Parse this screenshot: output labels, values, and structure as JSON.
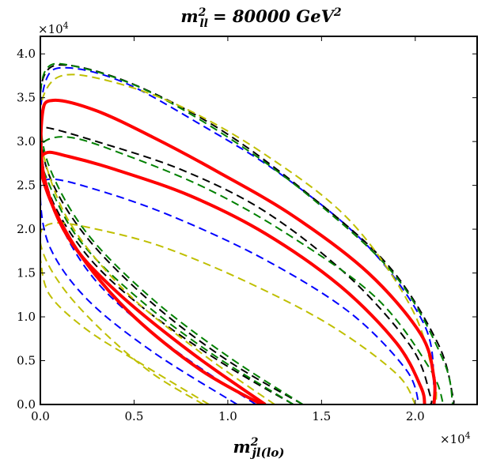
{
  "chart_data": {
    "type": "line",
    "title": "m_ll^2 = 80000 GeV^2",
    "title_parts": {
      "lhs_base": "m",
      "lhs_sup": "2",
      "lhs_sub": "ll",
      "rhs": "= 80000 GeV",
      "rhs_sup": "2"
    },
    "xlabel": "m_jl(lo)^2",
    "xlabel_parts": {
      "base": "m",
      "sup": "2",
      "sub": "jl(lo)"
    },
    "ylabel": "",
    "x_scale_label": "×10^4",
    "y_scale_label": "×10^4",
    "x_scale_parts": {
      "base": "×10",
      "exp": "4"
    },
    "y_scale_parts": {
      "base": "×10",
      "exp": "4"
    },
    "xlim": [
      0,
      23300
    ],
    "ylim": [
      0,
      42000
    ],
    "xticks": [
      0,
      5000,
      10000,
      15000,
      20000
    ],
    "xtick_labels": [
      "0.0",
      "0.5",
      "1.0",
      "1.5",
      "2.0"
    ],
    "yticks": [
      0,
      5000,
      10000,
      15000,
      20000,
      25000,
      30000,
      35000,
      40000
    ],
    "ytick_labels": [
      "0.0",
      "0.5",
      "1.0",
      "1.5",
      "2.0",
      "2.5",
      "3.0",
      "3.5",
      "4.0"
    ],
    "grid": false,
    "colors": {
      "red": "#ff0000",
      "blue": "#0000ff",
      "green": "#008000",
      "black": "#000000",
      "yellow": "#bfbf00"
    },
    "series": [
      {
        "name": "red-outer",
        "color": "red",
        "style": "solid",
        "width": 4,
        "points": [
          [
            12000,
            0
          ],
          [
            8000,
            6000
          ],
          [
            4000,
            13000
          ],
          [
            1500,
            19000
          ],
          [
            200,
            26000
          ],
          [
            100,
            33000
          ],
          [
            700,
            34700
          ],
          [
            3000,
            33500
          ],
          [
            6000,
            30500
          ],
          [
            9500,
            26500
          ],
          [
            13500,
            21500
          ],
          [
            17500,
            15000
          ],
          [
            20300,
            8000
          ],
          [
            21000,
            3000
          ],
          [
            21000,
            0
          ]
        ]
      },
      {
        "name": "red-inner",
        "color": "red",
        "style": "solid",
        "width": 4,
        "points": [
          [
            11800,
            0
          ],
          [
            8500,
            4000
          ],
          [
            5000,
            10000
          ],
          [
            2500,
            16000
          ],
          [
            800,
            22000
          ],
          [
            0,
            27000
          ],
          [
            300,
            28700
          ],
          [
            1500,
            28300
          ],
          [
            4000,
            26800
          ],
          [
            8000,
            23800
          ],
          [
            12000,
            19500
          ],
          [
            16000,
            13500
          ],
          [
            19000,
            7000
          ],
          [
            20300,
            2000
          ],
          [
            20500,
            0
          ]
        ]
      },
      {
        "name": "blue-outer",
        "color": "blue",
        "style": "dashed",
        "width": 2,
        "points": [
          [
            11500,
            0
          ],
          [
            7000,
            6500
          ],
          [
            3000,
            14000
          ],
          [
            800,
            22000
          ],
          [
            0,
            30000
          ],
          [
            300,
            37000
          ],
          [
            1500,
            38400
          ],
          [
            4500,
            36700
          ],
          [
            8500,
            32000
          ],
          [
            13000,
            26000
          ],
          [
            17500,
            18000
          ],
          [
            20500,
            9000
          ],
          [
            21000,
            2000
          ],
          [
            21000,
            0
          ]
        ]
      },
      {
        "name": "blue-inner",
        "color": "blue",
        "style": "dashed",
        "width": 2,
        "points": [
          [
            10500,
            0
          ],
          [
            6000,
            6000
          ],
          [
            2500,
            12000
          ],
          [
            500,
            18000
          ],
          [
            0,
            24000
          ],
          [
            500,
            25700
          ],
          [
            3000,
            24500
          ],
          [
            7000,
            21500
          ],
          [
            12000,
            16500
          ],
          [
            16500,
            10500
          ],
          [
            19500,
            4000
          ],
          [
            20200,
            0
          ]
        ]
      },
      {
        "name": "black-outer",
        "color": "black",
        "style": "dashed",
        "width": 2,
        "points": [
          [
            14000,
            0
          ],
          [
            10000,
            5000
          ],
          [
            6000,
            11500
          ],
          [
            2500,
            19000
          ],
          [
            500,
            26000
          ],
          [
            0,
            32000
          ],
          [
            200,
            37500
          ],
          [
            1500,
            38700
          ],
          [
            5000,
            36500
          ],
          [
            9500,
            31500
          ],
          [
            14000,
            24500
          ],
          [
            18500,
            16000
          ],
          [
            21200,
            7000
          ],
          [
            22000,
            1000
          ],
          [
            22000,
            0
          ]
        ]
      },
      {
        "name": "black-inner",
        "color": "black",
        "style": "dashed",
        "width": 2,
        "points": [
          [
            13500,
            0
          ],
          [
            9500,
            5000
          ],
          [
            5500,
            11000
          ],
          [
            2500,
            17000
          ],
          [
            500,
            24000
          ],
          [
            0,
            31000
          ],
          [
            300,
            31600
          ],
          [
            3000,
            30000
          ],
          [
            7500,
            26800
          ],
          [
            12000,
            22000
          ],
          [
            16500,
            14500
          ],
          [
            19800,
            6500
          ],
          [
            20800,
            1000
          ],
          [
            20800,
            0
          ]
        ]
      },
      {
        "name": "green-outer",
        "color": "green",
        "style": "dashed",
        "width": 2,
        "points": [
          [
            14000,
            0
          ],
          [
            10000,
            5500
          ],
          [
            6000,
            12000
          ],
          [
            2500,
            19500
          ],
          [
            500,
            27000
          ],
          [
            0,
            33000
          ],
          [
            300,
            38200
          ],
          [
            1800,
            38600
          ],
          [
            5500,
            36000
          ],
          [
            10000,
            30500
          ],
          [
            14500,
            23500
          ],
          [
            19000,
            14500
          ],
          [
            21500,
            5000
          ],
          [
            22000,
            0
          ]
        ]
      },
      {
        "name": "green-inner",
        "color": "green",
        "style": "dashed",
        "width": 2,
        "points": [
          [
            13500,
            0
          ],
          [
            9000,
            6000
          ],
          [
            5000,
            12500
          ],
          [
            2000,
            19000
          ],
          [
            300,
            26000
          ],
          [
            0,
            29500
          ],
          [
            1500,
            30500
          ],
          [
            4500,
            28500
          ],
          [
            9000,
            24500
          ],
          [
            13500,
            19000
          ],
          [
            18000,
            12000
          ],
          [
            20800,
            4000
          ],
          [
            21500,
            0
          ]
        ]
      },
      {
        "name": "yellow-outer",
        "color": "yellow",
        "style": "dashed",
        "width": 2,
        "points": [
          [
            12500,
            0
          ],
          [
            8500,
            6000
          ],
          [
            4500,
            13000
          ],
          [
            1500,
            21000
          ],
          [
            100,
            29000
          ],
          [
            0,
            34000
          ],
          [
            1000,
            37400
          ],
          [
            3500,
            37000
          ],
          [
            7500,
            34000
          ],
          [
            12000,
            28500
          ],
          [
            16500,
            21000
          ],
          [
            19800,
            11000
          ],
          [
            21000,
            3000
          ],
          [
            21100,
            0
          ]
        ]
      },
      {
        "name": "yellow-inner",
        "color": "yellow",
        "style": "dashed",
        "width": 2,
        "points": [
          [
            8700,
            0
          ],
          [
            6000,
            3500
          ],
          [
            3500,
            8000
          ],
          [
            1500,
            12500
          ],
          [
            300,
            16500
          ],
          [
            0,
            19500
          ],
          [
            800,
            20700
          ],
          [
            3000,
            20000
          ],
          [
            6500,
            18000
          ],
          [
            11000,
            14000
          ],
          [
            15500,
            9000
          ],
          [
            19000,
            3500
          ],
          [
            20000,
            0
          ]
        ]
      },
      {
        "name": "yellow-low",
        "color": "yellow",
        "style": "dashed",
        "width": 2,
        "points": [
          [
            9000,
            0
          ],
          [
            5500,
            4500
          ],
          [
            2500,
            8500
          ],
          [
            500,
            12500
          ],
          [
            0,
            16500
          ]
        ]
      }
    ]
  }
}
